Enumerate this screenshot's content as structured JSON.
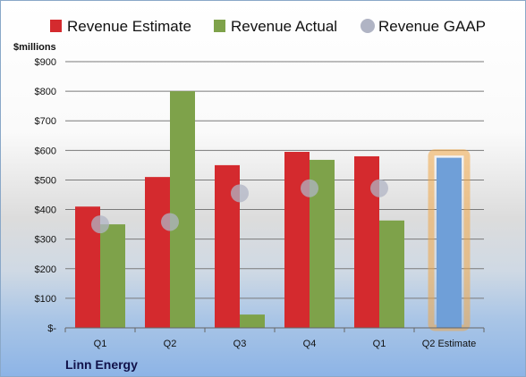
{
  "chart_data": {
    "type": "bar",
    "categories": [
      "Q1",
      "Q2",
      "Q3",
      "Q4",
      "Q1",
      "Q2 Estimate"
    ],
    "series": [
      {
        "name": "Revenue Estimate",
        "color": "#d42a2e",
        "values": [
          410,
          510,
          550,
          595,
          580,
          null
        ]
      },
      {
        "name": "Revenue Actual",
        "color": "#7ea24a",
        "values": [
          350,
          800,
          45,
          568,
          363,
          null
        ]
      },
      {
        "name": "Revenue GAAP",
        "color": "#b0b4c4",
        "marker": "circle",
        "values": [
          350,
          358,
          455,
          472,
          472,
          null
        ]
      }
    ],
    "estimate_bar": {
      "category_index": 5,
      "value": 575,
      "color": "#6f9fd8",
      "glow_color": "#f0a848"
    },
    "ylabel": "$millions",
    "ylim": [
      0,
      900
    ],
    "yticks": [
      0,
      100,
      200,
      300,
      400,
      500,
      600,
      700,
      800,
      900
    ],
    "ytick_labels": [
      "$-",
      "$100",
      "$200",
      "$300",
      "$400",
      "$500",
      "$600",
      "$700",
      "$800",
      "$900"
    ],
    "company": "Linn Energy",
    "grid": true,
    "legend_position": "top"
  }
}
